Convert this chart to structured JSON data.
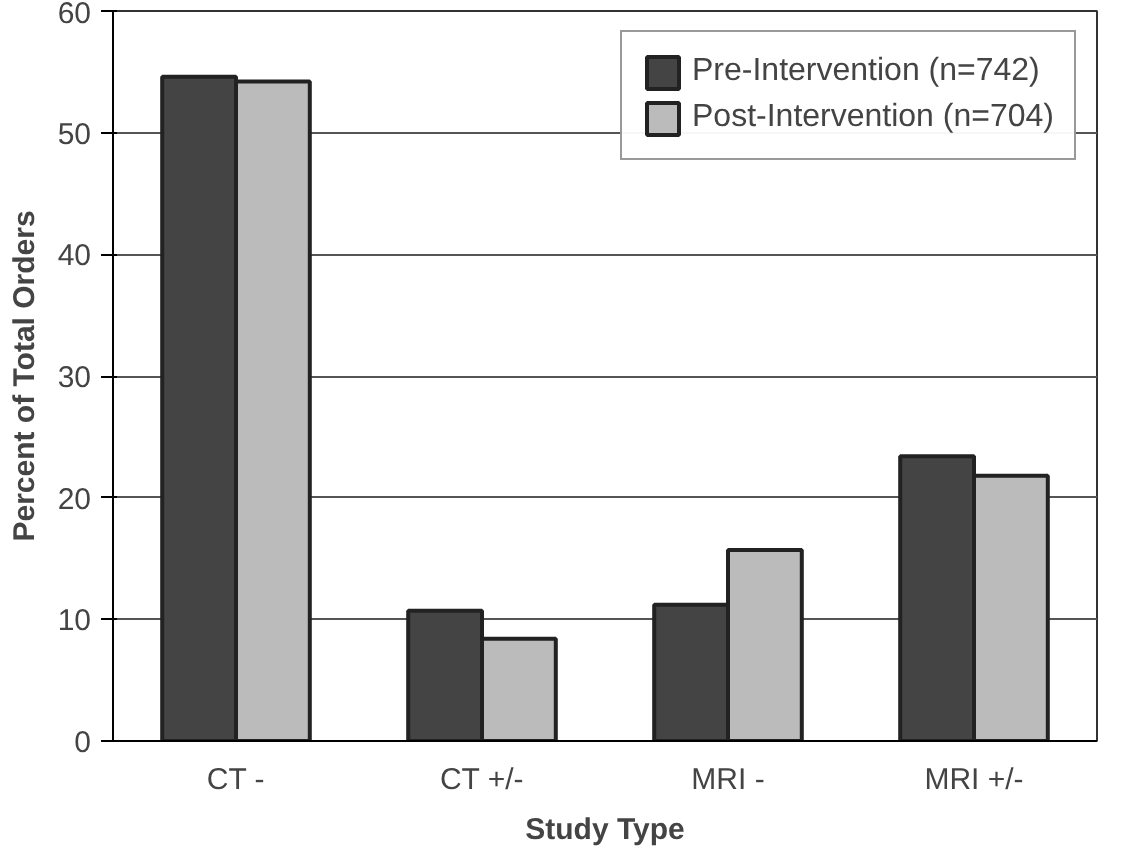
{
  "chart_data": {
    "type": "bar",
    "xlabel": "Study Type",
    "ylabel": "Percent of Total Orders",
    "categories": [
      "CT -",
      "CT +/-",
      "MRI -",
      "MRI +/-"
    ],
    "series": [
      {
        "name": "Pre-Intervention (n=742)",
        "color": "#444444",
        "values": [
          54.6,
          10.7,
          11.2,
          23.4
        ]
      },
      {
        "name": "Post-Intervention (n=704)",
        "color": "#bbbbbb",
        "values": [
          54.2,
          8.4,
          15.7,
          21.8
        ]
      }
    ],
    "ylim": [
      0,
      60
    ],
    "yticks": [
      0,
      10,
      20,
      30,
      40,
      50,
      60
    ],
    "grid": "y",
    "legend": "top right"
  }
}
